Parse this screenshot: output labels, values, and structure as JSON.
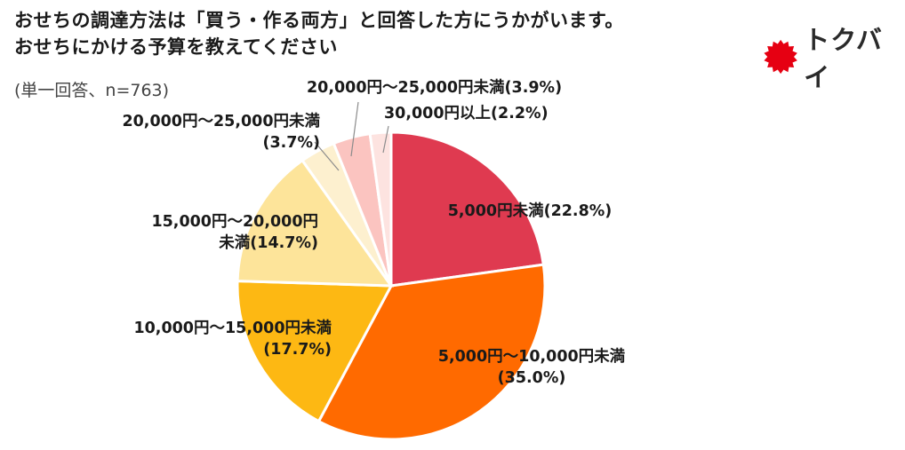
{
  "header": {
    "title_line1": "おせちの調達方法は「買う・作る両方」と回答した方にうかがいます。",
    "title_line2": "おせちにかける予算を教えてください",
    "note": "(単一回答、n=763)"
  },
  "logo": {
    "icon": "red-burst-icon",
    "text": "トクバイ",
    "color": "#e60012"
  },
  "chart_data": {
    "type": "pie",
    "title": "おせちにかける予算を教えてください",
    "start_angle_deg": 0,
    "direction": "clockwise",
    "slices": [
      {
        "label": "5,000円未満",
        "value": 22.8,
        "color": "#df3a50",
        "label_lines": [
          "5,000円未満(22.8%)"
        ]
      },
      {
        "label": "5,000円～10,000円未満",
        "value": 35.0,
        "color": "#ff6a00",
        "label_lines": [
          "5,000円～10,000円未満",
          "(35.0%)"
        ]
      },
      {
        "label": "10,000円～15,000円未満",
        "value": 17.7,
        "color": "#fdb813",
        "label_lines": [
          "10,000円～15,000円未満",
          "(17.7%)"
        ]
      },
      {
        "label": "15,000円～20,000円未満",
        "value": 14.7,
        "color": "#fde49a",
        "label_lines": [
          "15,000円～20,000円",
          "未満(14.7%)"
        ]
      },
      {
        "label": "20,000円～25,000円未満",
        "value": 3.7,
        "color": "#fdf0cf",
        "label_lines": [
          "20,000円～25,000円未満",
          "(3.7%)"
        ]
      },
      {
        "label": "20,000円～25,000円未満",
        "value": 3.9,
        "color": "#fbc4c0",
        "label_lines": [
          "20,000円～25,000円未満(3.9%)"
        ]
      },
      {
        "label": "30,000円以上",
        "value": 2.2,
        "color": "#fde3e0",
        "label_lines": [
          "30,000円以上(2.2%)"
        ]
      }
    ]
  }
}
